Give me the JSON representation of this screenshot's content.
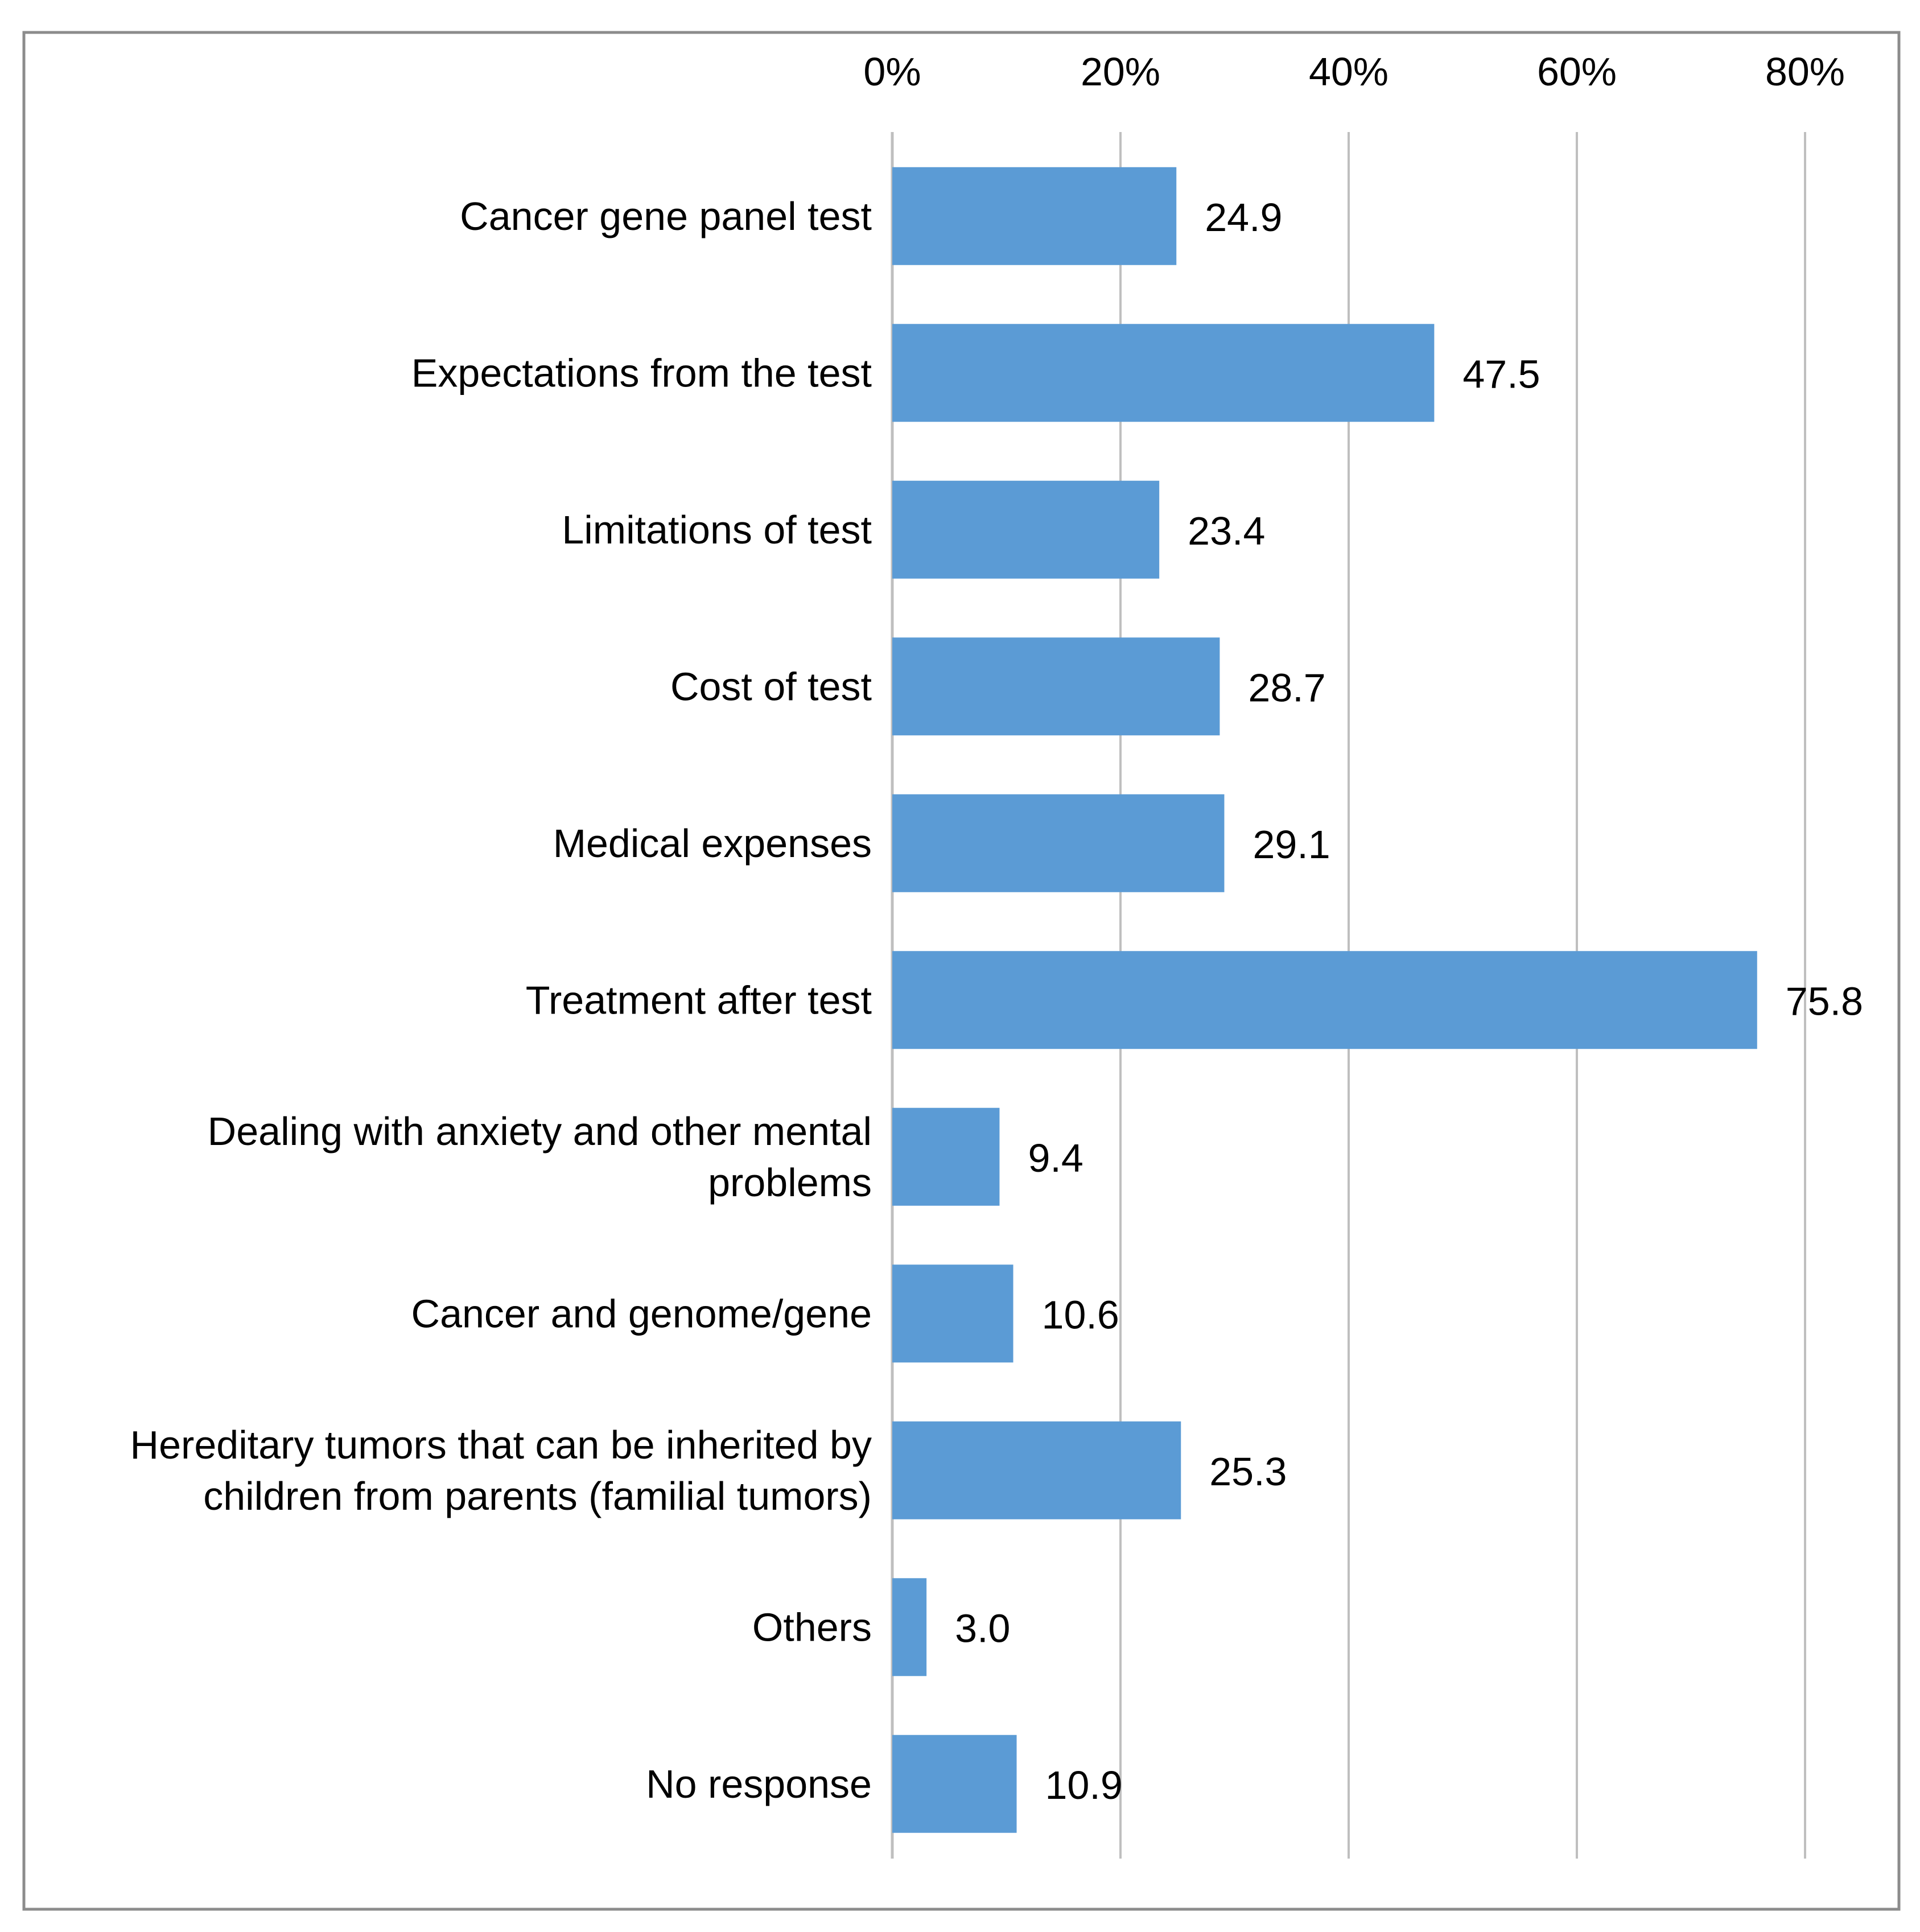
{
  "chart_data": {
    "type": "bar",
    "orientation": "horizontal",
    "title": "",
    "xlabel": "",
    "ylabel": "",
    "xlim": [
      0,
      80
    ],
    "x_axis_position": "top",
    "x_ticks": [
      0,
      20,
      40,
      60,
      80
    ],
    "x_tick_labels": [
      "0%",
      "20%",
      "40%",
      "60%",
      "80%"
    ],
    "grid": true,
    "legend": "none",
    "bar_color": "#5B9BD5",
    "grid_color": "#BFBFBF",
    "border_color": "#8C8C8C",
    "categories": [
      [
        "Cancer gene panel test"
      ],
      [
        "Expectations from the test"
      ],
      [
        "Limitations of test"
      ],
      [
        "Cost of test"
      ],
      [
        "Medical expenses"
      ],
      [
        "Treatment after test"
      ],
      [
        "Dealing with anxiety and other mental",
        "problems"
      ],
      [
        "Cancer and genome/gene"
      ],
      [
        "Hereditary tumors that can be inherited by",
        "children from parents (familial tumors)"
      ],
      [
        "Others"
      ],
      [
        "No response"
      ]
    ],
    "values": [
      24.9,
      47.5,
      23.4,
      28.7,
      29.1,
      75.8,
      9.4,
      10.6,
      25.3,
      3.0,
      10.9
    ],
    "value_labels": [
      "24.9",
      "47.5",
      "23.4",
      "28.7",
      "29.1",
      "75.8",
      "9.4",
      "10.6",
      "25.3",
      "3.0",
      "10.9"
    ]
  }
}
